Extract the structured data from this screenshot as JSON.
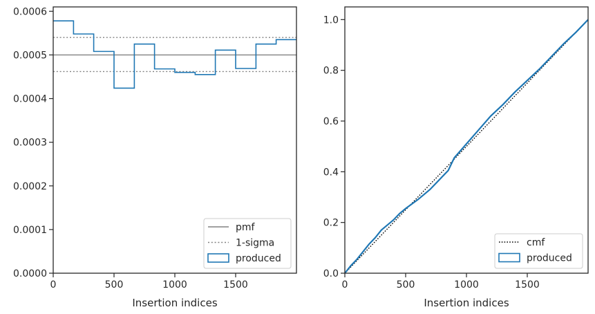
{
  "chart_data": [
    {
      "type": "line",
      "xlabel": "Insertion indices",
      "ylabel": "",
      "xlim": [
        0,
        2000
      ],
      "ylim": [
        0,
        0.00061
      ],
      "xticks": [
        0,
        500,
        1000,
        1500
      ],
      "xtick_labels": [
        "0",
        "500",
        "1000",
        "1500"
      ],
      "yticks": [
        0,
        0.0001,
        0.0002,
        0.0003,
        0.0004,
        0.0005,
        0.0006
      ],
      "ytick_labels": [
        "0.0000",
        "0.0001",
        "0.0002",
        "0.0003",
        "0.0004",
        "0.0005",
        "0.0006"
      ],
      "grid": false,
      "legend_position": "lower-right",
      "series": [
        {
          "name": "pmf",
          "kind": "hline",
          "y": 0.0005,
          "color": "#808080",
          "dash": "solid"
        },
        {
          "name": "1-sigma",
          "kind": "hlines",
          "y": [
            0.00054,
            0.000462
          ],
          "color": "#808080",
          "dash": "dotted"
        },
        {
          "name": "produced",
          "kind": "step-hist",
          "color": "#1f77b4",
          "bin_edges": [
            0,
            167,
            333,
            500,
            667,
            833,
            1000,
            1167,
            1333,
            1500,
            1667,
            1833,
            2000
          ],
          "values": [
            0.000578,
            0.000548,
            0.000508,
            0.000424,
            0.000525,
            0.000468,
            0.00046,
            0.000455,
            0.000511,
            0.000469,
            0.000525,
            0.000535
          ]
        }
      ],
      "legend": [
        "pmf",
        "1-sigma",
        "produced"
      ]
    },
    {
      "type": "line",
      "xlabel": "Insertion indices",
      "ylabel": "",
      "xlim": [
        0,
        2000
      ],
      "ylim": [
        0,
        1.05
      ],
      "xticks": [
        0,
        500,
        1000,
        1500
      ],
      "xtick_labels": [
        "0",
        "500",
        "1000",
        "1500"
      ],
      "yticks": [
        0,
        0.2,
        0.4,
        0.6,
        0.8,
        1.0
      ],
      "ytick_labels": [
        "0.0",
        "0.2",
        "0.4",
        "0.6",
        "0.8",
        "1.0"
      ],
      "grid": false,
      "legend_position": "lower-right",
      "series": [
        {
          "name": "cmf",
          "kind": "line",
          "color": "#000000",
          "dash": "dotted",
          "x": [
            0,
            2000
          ],
          "y": [
            0,
            1.0
          ]
        },
        {
          "name": "produced",
          "kind": "line",
          "color": "#1f77b4",
          "x": [
            0,
            50,
            100,
            150,
            200,
            250,
            300,
            350,
            400,
            450,
            500,
            600,
            700,
            800,
            850,
            900,
            1000,
            1100,
            1200,
            1300,
            1400,
            1500,
            1600,
            1700,
            1800,
            1900,
            2000
          ],
          "y": [
            0,
            0.03,
            0.055,
            0.085,
            0.115,
            0.14,
            0.17,
            0.19,
            0.21,
            0.235,
            0.255,
            0.29,
            0.33,
            0.38,
            0.405,
            0.455,
            0.51,
            0.565,
            0.62,
            0.665,
            0.715,
            0.76,
            0.805,
            0.855,
            0.905,
            0.95,
            1.0
          ]
        }
      ],
      "legend": [
        "cmf",
        "produced"
      ]
    }
  ]
}
